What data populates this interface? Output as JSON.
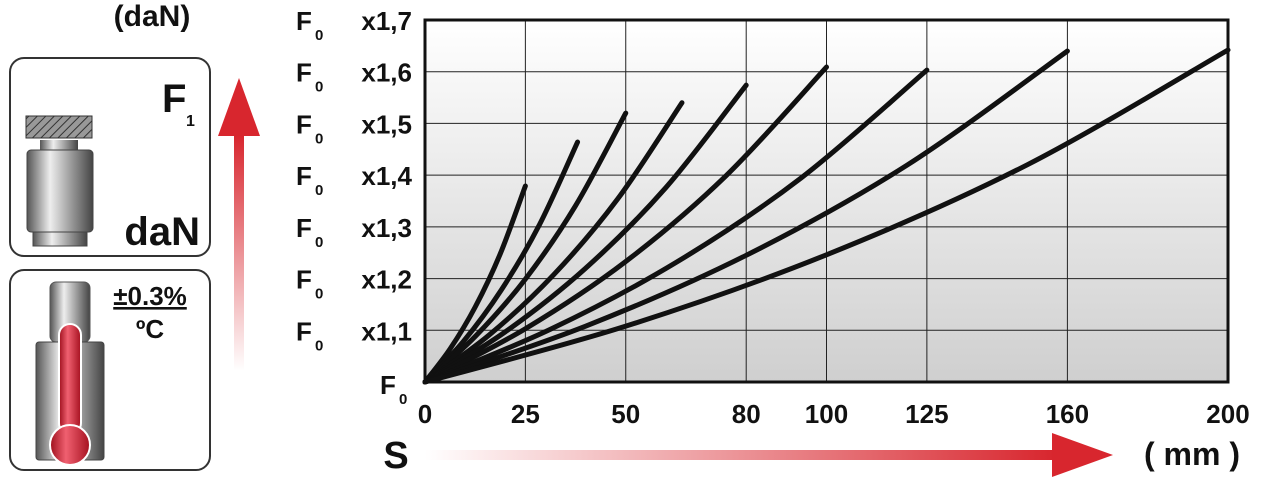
{
  "chart_data": {
    "type": "line",
    "y_label": "(daN)",
    "x_symbol": "S",
    "x_label": "( mm )",
    "annotations": {
      "force_symbol": "F",
      "force_sub": "1",
      "force_unit": "daN",
      "tolerance": "±0.3%",
      "per_unit": "ºC"
    },
    "xlim": [
      0,
      200
    ],
    "xticks": [
      0,
      25,
      50,
      80,
      100,
      125,
      160,
      200
    ],
    "ylim": [
      1,
      1.7
    ],
    "yticks": [
      {
        "value": 1,
        "label": "F",
        "sub": "0"
      },
      {
        "value": 1.1,
        "label": "F",
        "sub": "0",
        "factor": "x1,1"
      },
      {
        "value": 1.2,
        "label": "F",
        "sub": "0",
        "factor": "x1,2"
      },
      {
        "value": 1.3,
        "label": "F",
        "sub": "0",
        "factor": "x1,3"
      },
      {
        "value": 1.4,
        "label": "F",
        "sub": "0",
        "factor": "x1,4"
      },
      {
        "value": 1.5,
        "label": "F",
        "sub": "0",
        "factor": "x1,5"
      },
      {
        "value": 1.6,
        "label": "F",
        "sub": "0",
        "factor": "x1,6"
      },
      {
        "value": 1.7,
        "label": "F",
        "sub": "0",
        "factor": "x1,7"
      }
    ],
    "grid": true,
    "line_color": "#111111",
    "series": [
      {
        "x": [
          0,
          6.25,
          12.5,
          18.75,
          25
        ],
        "values": [
          1,
          1.064,
          1.145,
          1.248,
          1.379
        ]
      },
      {
        "x": [
          0,
          9.5,
          19,
          28.5,
          38
        ],
        "values": [
          1,
          1.078,
          1.178,
          1.304,
          1.464
        ]
      },
      {
        "x": [
          0,
          12.5,
          25,
          37.5,
          50
        ],
        "values": [
          1,
          1.088,
          1.199,
          1.341,
          1.52
        ]
      },
      {
        "x": [
          0,
          16,
          32,
          48,
          64
        ],
        "values": [
          1,
          1.091,
          1.207,
          1.354,
          1.54
        ]
      },
      {
        "x": [
          0,
          20,
          40,
          60,
          80
        ],
        "values": [
          1,
          1.097,
          1.22,
          1.376,
          1.574
        ]
      },
      {
        "x": [
          0,
          25,
          50,
          75,
          100
        ],
        "values": [
          1,
          1.103,
          1.233,
          1.399,
          1.609
        ]
      },
      {
        "x": [
          0,
          31.25,
          62.5,
          93.75,
          125
        ],
        "values": [
          1,
          1.102,
          1.231,
          1.395,
          1.603
        ]
      },
      {
        "x": [
          0,
          40,
          80,
          120,
          160
        ],
        "values": [
          1,
          1.108,
          1.245,
          1.419,
          1.64
        ]
      },
      {
        "x": [
          0,
          50,
          100,
          150,
          200
        ],
        "values": [
          1,
          1.108,
          1.246,
          1.42,
          1.642
        ]
      }
    ]
  }
}
